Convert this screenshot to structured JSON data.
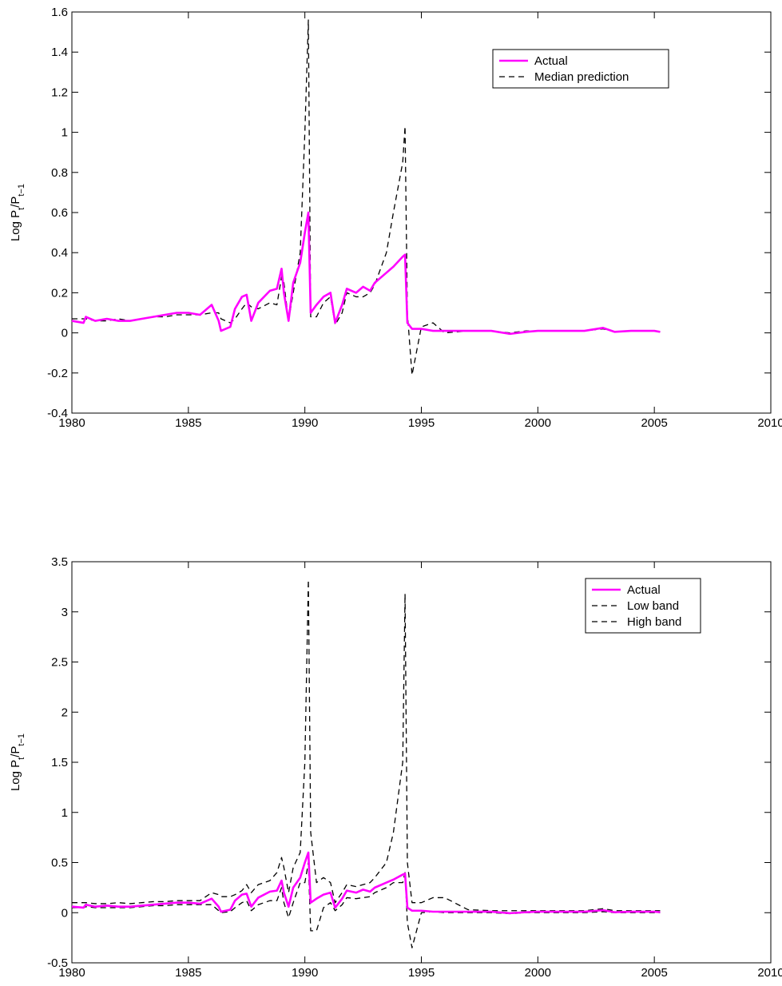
{
  "chart_data": [
    {
      "type": "line",
      "ylabel": [
        "Log P",
        "t",
        "/P",
        "t−1"
      ],
      "x": [
        1980.0,
        1980.5,
        1980.6,
        1981.0,
        1981.5,
        1982.0,
        1982.5,
        1983.0,
        1983.5,
        1984.0,
        1984.5,
        1985.0,
        1985.5,
        1986.0,
        1986.3,
        1986.4,
        1986.8,
        1987.0,
        1987.3,
        1987.5,
        1987.7,
        1988.0,
        1988.5,
        1988.8,
        1989.0,
        1989.1,
        1989.3,
        1989.5,
        1989.8,
        1990.0,
        1990.15,
        1990.25,
        1990.5,
        1990.8,
        1991.1,
        1991.3,
        1991.6,
        1991.8,
        1992.2,
        1992.5,
        1992.8,
        1993.0,
        1993.5,
        1993.8,
        1994.2,
        1994.3,
        1994.4,
        1994.6,
        1995.0,
        1995.5,
        1996.0,
        1997.0,
        1998.0,
        1998.8,
        1999.5,
        2000.0,
        2001.0,
        2002.0,
        2002.8,
        2003.3,
        2004.0,
        2005.0,
        2005.25
      ],
      "series": [
        {
          "name": "Actual",
          "color": "#ff00ff",
          "style": "solid",
          "values": [
            0.06,
            0.05,
            0.08,
            0.06,
            0.07,
            0.06,
            0.06,
            0.07,
            0.08,
            0.09,
            0.1,
            0.1,
            0.09,
            0.14,
            0.06,
            0.01,
            0.03,
            0.12,
            0.18,
            0.19,
            0.06,
            0.15,
            0.21,
            0.22,
            0.32,
            0.2,
            0.06,
            0.25,
            0.35,
            0.5,
            0.6,
            0.1,
            0.14,
            0.18,
            0.2,
            0.05,
            0.14,
            0.22,
            0.2,
            0.23,
            0.21,
            0.25,
            0.3,
            0.33,
            0.38,
            0.39,
            0.05,
            0.02,
            0.02,
            0.01,
            0.01,
            0.01,
            0.01,
            -0.005,
            0.005,
            0.01,
            0.01,
            0.01,
            0.025,
            0.005,
            0.01,
            0.01,
            0.005
          ]
        },
        {
          "name": "Median prediction",
          "color": "#000000",
          "style": "dashed",
          "values": [
            0.07,
            0.07,
            0.07,
            0.06,
            0.06,
            0.07,
            0.06,
            0.07,
            0.08,
            0.08,
            0.09,
            0.09,
            0.09,
            0.1,
            0.1,
            0.07,
            0.05,
            0.07,
            0.12,
            0.15,
            0.13,
            0.12,
            0.15,
            0.14,
            0.28,
            0.25,
            0.06,
            0.2,
            0.4,
            1.0,
            1.56,
            0.08,
            0.08,
            0.15,
            0.18,
            0.04,
            0.1,
            0.2,
            0.18,
            0.18,
            0.2,
            0.24,
            0.4,
            0.6,
            0.85,
            1.03,
            0.1,
            -0.21,
            0.03,
            0.05,
            0.0,
            0.01,
            0.01,
            0.0,
            0.01,
            0.01,
            0.01,
            0.01,
            0.02,
            0.005,
            0.01,
            0.01,
            0.005
          ]
        }
      ],
      "xlim": [
        1980,
        2010
      ],
      "xticks": [
        1980,
        1985,
        1990,
        1995,
        2000,
        2005,
        2010
      ],
      "ylim": [
        -0.4,
        1.6
      ],
      "yticks": [
        -0.4,
        -0.2,
        0,
        0.2,
        0.4,
        0.6,
        0.8,
        1,
        1.2,
        1.4,
        1.6
      ],
      "grid": false,
      "legend": "upper right"
    },
    {
      "type": "line",
      "ylabel": [
        "Log  P",
        "t",
        "/P",
        "t−1"
      ],
      "x": [
        1980.0,
        1980.5,
        1980.6,
        1981.0,
        1981.5,
        1982.0,
        1982.5,
        1983.0,
        1983.5,
        1984.0,
        1984.5,
        1985.0,
        1985.5,
        1986.0,
        1986.3,
        1986.4,
        1986.8,
        1987.0,
        1987.3,
        1987.5,
        1987.7,
        1988.0,
        1988.5,
        1988.8,
        1989.0,
        1989.1,
        1989.3,
        1989.5,
        1989.8,
        1990.0,
        1990.15,
        1990.25,
        1990.5,
        1990.8,
        1991.1,
        1991.3,
        1991.6,
        1991.8,
        1992.2,
        1992.5,
        1992.8,
        1993.0,
        1993.5,
        1993.8,
        1994.2,
        1994.3,
        1994.4,
        1994.6,
        1995.0,
        1995.5,
        1996.0,
        1997.0,
        1998.0,
        1998.8,
        1999.5,
        2000.0,
        2001.0,
        2002.0,
        2002.8,
        2003.3,
        2004.0,
        2005.0,
        2005.25
      ],
      "series": [
        {
          "name": "Actual",
          "color": "#ff00ff",
          "style": "solid",
          "values": [
            0.06,
            0.05,
            0.08,
            0.06,
            0.07,
            0.06,
            0.06,
            0.07,
            0.08,
            0.09,
            0.1,
            0.1,
            0.09,
            0.14,
            0.06,
            0.01,
            0.03,
            0.12,
            0.18,
            0.19,
            0.06,
            0.15,
            0.21,
            0.22,
            0.32,
            0.2,
            0.06,
            0.25,
            0.35,
            0.5,
            0.6,
            0.1,
            0.14,
            0.18,
            0.2,
            0.05,
            0.14,
            0.22,
            0.2,
            0.23,
            0.21,
            0.25,
            0.3,
            0.33,
            0.38,
            0.39,
            0.05,
            0.02,
            0.02,
            0.01,
            0.01,
            0.01,
            0.01,
            -0.005,
            0.005,
            0.01,
            0.01,
            0.01,
            0.025,
            0.005,
            0.01,
            0.01,
            0.005
          ]
        },
        {
          "name": "Low band",
          "color": "#000000",
          "style": "dashed",
          "values": [
            0.05,
            0.05,
            0.06,
            0.05,
            0.05,
            0.05,
            0.05,
            0.06,
            0.07,
            0.07,
            0.08,
            0.08,
            0.08,
            0.08,
            0.02,
            0.0,
            0.01,
            0.05,
            0.1,
            0.12,
            0.02,
            0.08,
            0.12,
            0.12,
            0.25,
            0.1,
            -0.05,
            0.1,
            0.3,
            0.3,
            0.5,
            -0.18,
            -0.18,
            0.05,
            0.1,
            0.02,
            0.08,
            0.15,
            0.14,
            0.15,
            0.16,
            0.2,
            0.25,
            0.3,
            0.3,
            0.4,
            -0.1,
            -0.35,
            0.0,
            0.01,
            0.0,
            0.0,
            0.0,
            -0.01,
            0.0,
            0.0,
            0.0,
            0.0,
            0.01,
            0.0,
            0.0,
            0.0,
            0.0
          ]
        },
        {
          "name": "High band",
          "color": "#000000",
          "style": "dashed",
          "values": [
            0.1,
            0.1,
            0.1,
            0.09,
            0.09,
            0.1,
            0.09,
            0.1,
            0.11,
            0.11,
            0.12,
            0.12,
            0.12,
            0.2,
            0.18,
            0.16,
            0.16,
            0.18,
            0.22,
            0.28,
            0.2,
            0.28,
            0.32,
            0.4,
            0.55,
            0.45,
            0.2,
            0.45,
            0.6,
            1.5,
            3.32,
            0.8,
            0.3,
            0.35,
            0.3,
            0.1,
            0.2,
            0.28,
            0.26,
            0.28,
            0.3,
            0.35,
            0.5,
            0.8,
            1.5,
            3.18,
            0.5,
            0.1,
            0.1,
            0.15,
            0.15,
            0.03,
            0.02,
            0.02,
            0.02,
            0.02,
            0.02,
            0.02,
            0.04,
            0.02,
            0.02,
            0.02,
            0.02
          ]
        }
      ],
      "xlim": [
        1980,
        2010
      ],
      "xticks": [
        1980,
        1985,
        1990,
        1995,
        2000,
        2005,
        2010
      ],
      "ylim": [
        -0.5,
        3.5
      ],
      "yticks": [
        -0.5,
        0,
        0.5,
        1,
        1.5,
        2,
        2.5,
        3,
        3.5
      ],
      "grid": false,
      "legend": "upper right"
    }
  ]
}
